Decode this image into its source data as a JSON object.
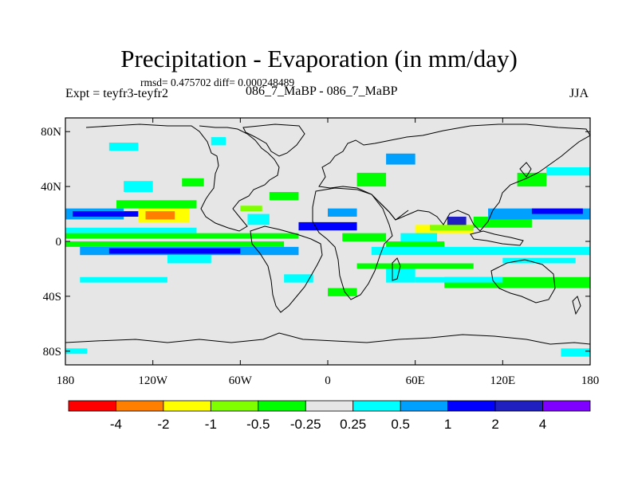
{
  "chart_data": {
    "type": "heatmap",
    "title": "Precipitation - Evaporation (in mm/day)",
    "stats": "rmsd= 0.475702  diff= 0.000248489",
    "experiment": "Expt = teyfr3-teyfr2",
    "experiment_name": "086_7_MaBP - 086_7_MaBP",
    "season": "JJA",
    "xlabel": "",
    "ylabel": "",
    "xlim": [
      -180,
      180
    ],
    "ylim": [
      -90,
      90
    ],
    "x_ticks": [
      {
        "value": -180,
        "label": "180"
      },
      {
        "value": -120,
        "label": "120W"
      },
      {
        "value": -60,
        "label": "60W"
      },
      {
        "value": 0,
        "label": "0"
      },
      {
        "value": 60,
        "label": "60E"
      },
      {
        "value": 120,
        "label": "120E"
      },
      {
        "value": 180,
        "label": "180"
      }
    ],
    "y_ticks": [
      {
        "value": 80,
        "label": "80N"
      },
      {
        "value": 40,
        "label": "40N"
      },
      {
        "value": 0,
        "label": "0"
      },
      {
        "value": -40,
        "label": "40S"
      },
      {
        "value": -80,
        "label": "80S"
      }
    ],
    "colorbar": {
      "levels": [
        -4,
        -2,
        -1,
        -0.5,
        -0.25,
        0.25,
        0.5,
        1,
        2,
        4
      ],
      "labels": [
        "-4",
        "-2",
        "-1",
        "-0.5",
        "-0.25",
        "0.25",
        "0.5",
        "1",
        "2",
        "4"
      ],
      "colors": [
        "#ff0000",
        "#ff8000",
        "#ffff00",
        "#80ff00",
        "#00ff00",
        "#e6e6e6",
        "#00ffff",
        "#00a0ff",
        "#0000ff",
        "#2020c0",
        "#8000ff"
      ]
    },
    "background_color": "#e6e6e6",
    "regions": [
      {
        "lon": [
          -180,
          -140
        ],
        "lat": [
          16,
          24
        ],
        "class": 7
      },
      {
        "lon": [
          -175,
          -125
        ],
        "lat": [
          18,
          22
        ],
        "class": 8
      },
      {
        "lon": [
          -130,
          -95
        ],
        "lat": [
          14,
          24
        ],
        "class": 2
      },
      {
        "lon": [
          -125,
          -105
        ],
        "lat": [
          16,
          22
        ],
        "class": 1
      },
      {
        "lon": [
          -145,
          -90
        ],
        "lat": [
          24,
          30
        ],
        "class": 4
      },
      {
        "lon": [
          -180,
          -90
        ],
        "lat": [
          6,
          10
        ],
        "class": 6
      },
      {
        "lon": [
          -180,
          -20
        ],
        "lat": [
          2,
          6
        ],
        "class": 4
      },
      {
        "lon": [
          -180,
          -30
        ],
        "lat": [
          -4,
          0
        ],
        "class": 4
      },
      {
        "lon": [
          -170,
          -20
        ],
        "lat": [
          -10,
          -4
        ],
        "class": 7
      },
      {
        "lon": [
          -150,
          -60
        ],
        "lat": [
          -9,
          -5
        ],
        "class": 8
      },
      {
        "lon": [
          -110,
          -80
        ],
        "lat": [
          -16,
          -10
        ],
        "class": 6
      },
      {
        "lon": [
          -170,
          -110
        ],
        "lat": [
          -30,
          -26
        ],
        "class": 6
      },
      {
        "lon": [
          -60,
          -45
        ],
        "lat": [
          22,
          26
        ],
        "class": 3
      },
      {
        "lon": [
          -55,
          -40
        ],
        "lat": [
          12,
          20
        ],
        "class": 6
      },
      {
        "lon": [
          -40,
          -20
        ],
        "lat": [
          30,
          36
        ],
        "class": 4
      },
      {
        "lon": [
          -20,
          20
        ],
        "lat": [
          8,
          14
        ],
        "class": 8
      },
      {
        "lon": [
          0,
          20
        ],
        "lat": [
          18,
          24
        ],
        "class": 7
      },
      {
        "lon": [
          10,
          40
        ],
        "lat": [
          0,
          6
        ],
        "class": 4
      },
      {
        "lon": [
          20,
          40
        ],
        "lat": [
          40,
          50
        ],
        "class": 4
      },
      {
        "lon": [
          40,
          60
        ],
        "lat": [
          56,
          64
        ],
        "class": 7
      },
      {
        "lon": [
          60,
          100
        ],
        "lat": [
          6,
          12
        ],
        "class": 2
      },
      {
        "lon": [
          70,
          100
        ],
        "lat": [
          8,
          12
        ],
        "class": 3
      },
      {
        "lon": [
          50,
          75
        ],
        "lat": [
          0,
          6
        ],
        "class": 6
      },
      {
        "lon": [
          82,
          95
        ],
        "lat": [
          12,
          18
        ],
        "class": 9
      },
      {
        "lon": [
          100,
          140
        ],
        "lat": [
          10,
          18
        ],
        "class": 4
      },
      {
        "lon": [
          110,
          180
        ],
        "lat": [
          16,
          24
        ],
        "class": 7
      },
      {
        "lon": [
          140,
          175
        ],
        "lat": [
          20,
          24
        ],
        "class": 8
      },
      {
        "lon": [
          40,
          80
        ],
        "lat": [
          -6,
          0
        ],
        "class": 4
      },
      {
        "lon": [
          30,
          180
        ],
        "lat": [
          -10,
          -4
        ],
        "class": 6
      },
      {
        "lon": [
          120,
          170
        ],
        "lat": [
          -16,
          -12
        ],
        "class": 6
      },
      {
        "lon": [
          20,
          100
        ],
        "lat": [
          -20,
          -16
        ],
        "class": 4
      },
      {
        "lon": [
          40,
          60
        ],
        "lat": [
          -30,
          -20
        ],
        "class": 6
      },
      {
        "lon": [
          80,
          180
        ],
        "lat": [
          -34,
          -26
        ],
        "class": 4
      },
      {
        "lon": [
          60,
          120
        ],
        "lat": [
          -30,
          -26
        ],
        "class": 6
      },
      {
        "lon": [
          160,
          180
        ],
        "lat": [
          -84,
          -78
        ],
        "class": 6
      },
      {
        "lon": [
          -180,
          -165
        ],
        "lat": [
          -82,
          -78
        ],
        "class": 6
      },
      {
        "lon": [
          -140,
          -120
        ],
        "lat": [
          36,
          44
        ],
        "class": 6
      },
      {
        "lon": [
          -100,
          -85
        ],
        "lat": [
          40,
          46
        ],
        "class": 4
      },
      {
        "lon": [
          -80,
          -70
        ],
        "lat": [
          70,
          76
        ],
        "class": 6
      },
      {
        "lon": [
          -150,
          -130
        ],
        "lat": [
          66,
          72
        ],
        "class": 6
      },
      {
        "lon": [
          130,
          150
        ],
        "lat": [
          40,
          50
        ],
        "class": 4
      },
      {
        "lon": [
          150,
          180
        ],
        "lat": [
          48,
          54
        ],
        "class": 6
      },
      {
        "lon": [
          -30,
          -10
        ],
        "lat": [
          -30,
          -24
        ],
        "class": 6
      },
      {
        "lon": [
          0,
          20
        ],
        "lat": [
          -40,
          -34
        ],
        "class": 4
      }
    ]
  }
}
